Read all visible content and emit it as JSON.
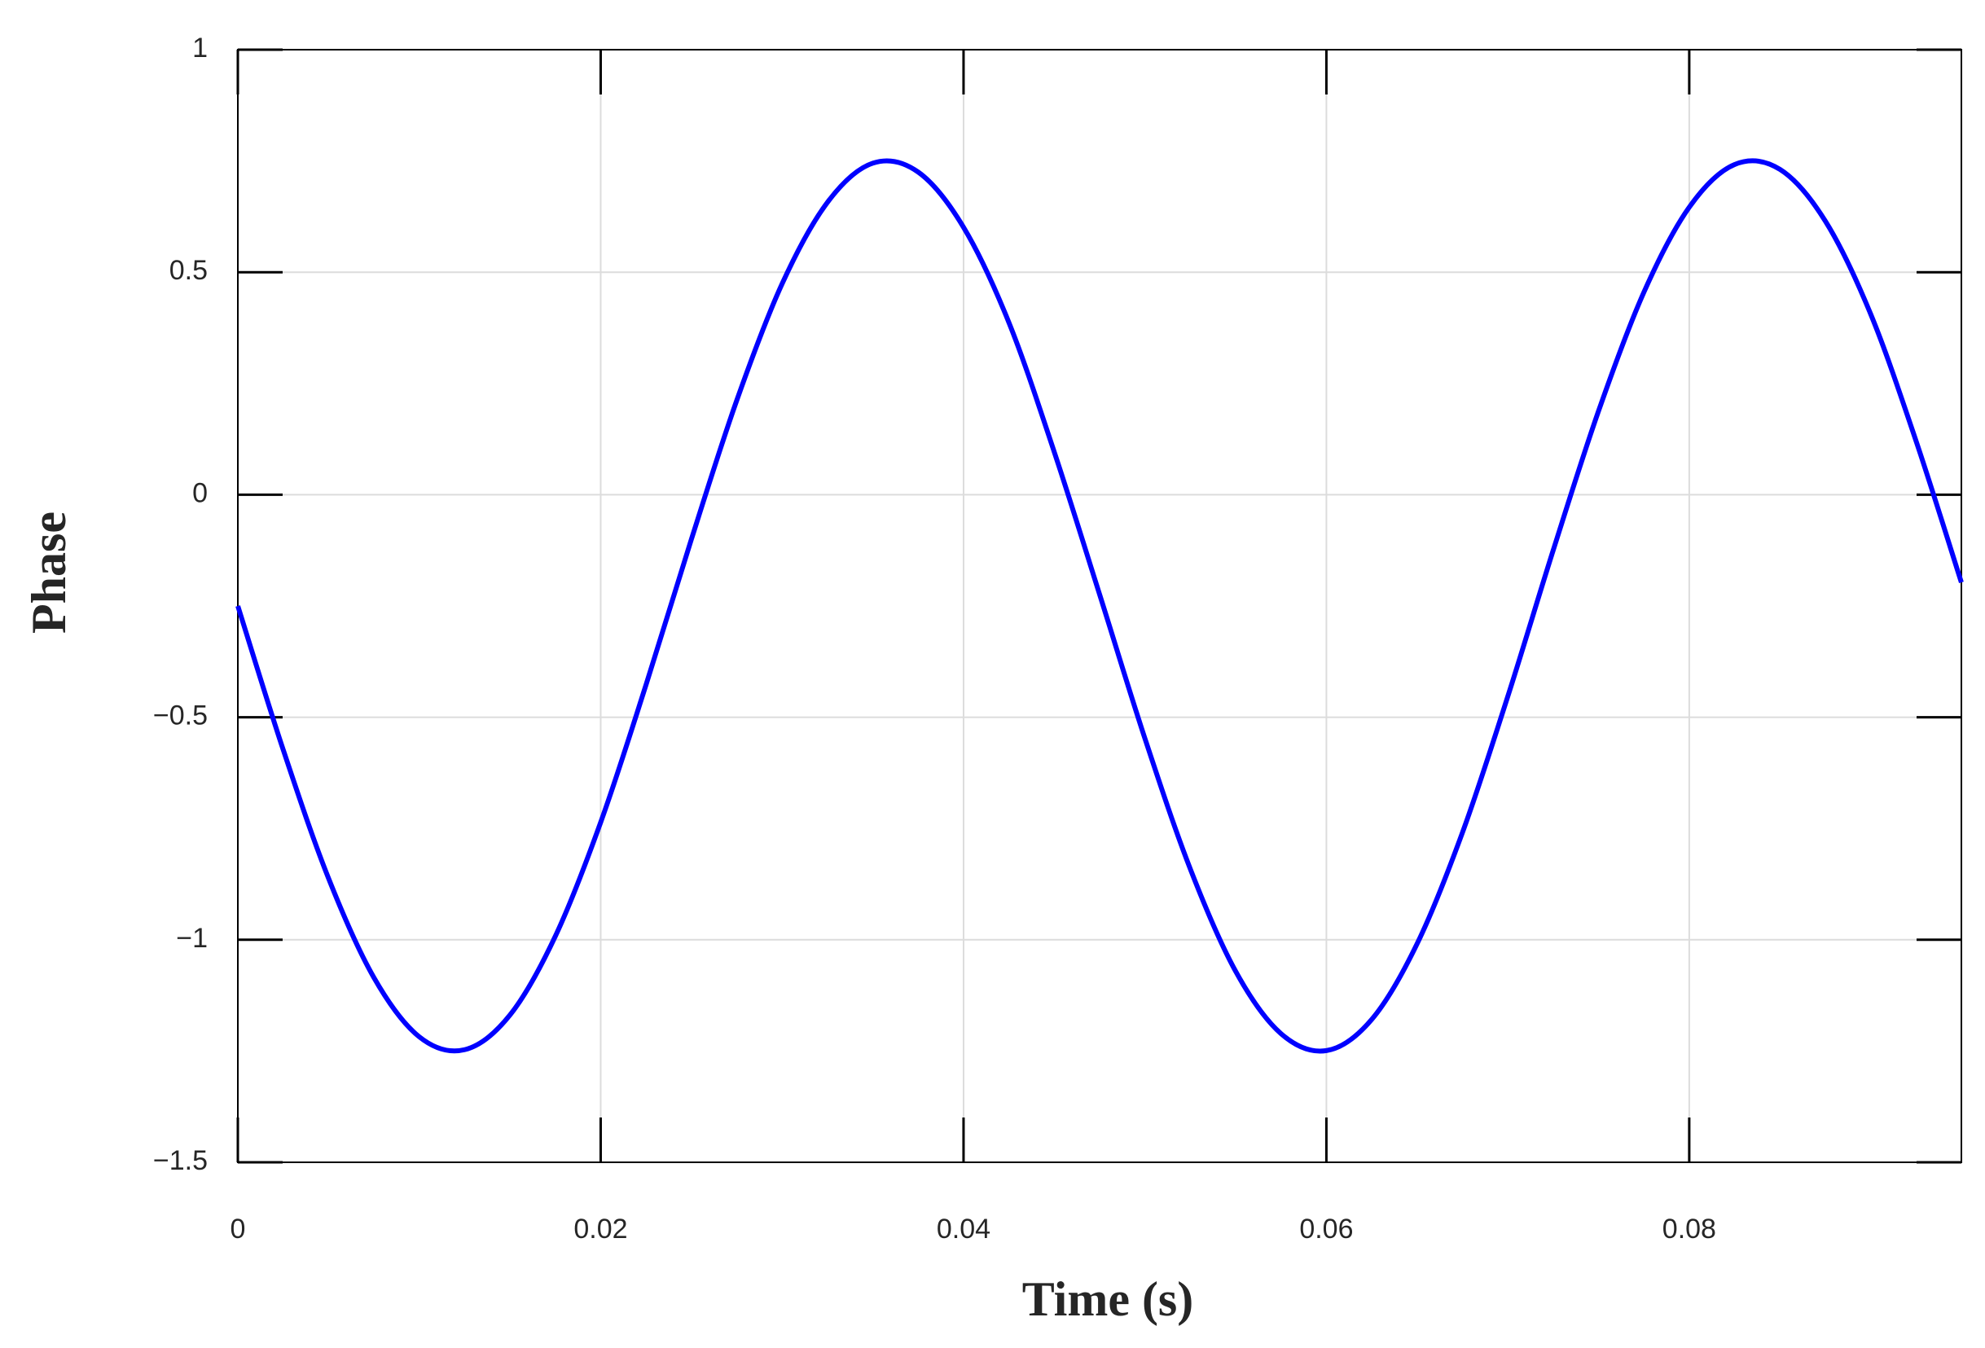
{
  "chart_data": {
    "type": "line",
    "x_label": "Time (s)",
    "y_label": "Phase",
    "x": [
      0,
      0.0025,
      0.005,
      0.0075,
      0.01,
      0.0125,
      0.015,
      0.0175,
      0.02,
      0.0225,
      0.025,
      0.0275,
      0.03,
      0.0325,
      0.035,
      0.0375,
      0.04,
      0.0425,
      0.045,
      0.0475,
      0.05,
      0.0525,
      0.055,
      0.0575,
      0.06,
      0.0625,
      0.065,
      0.0675,
      0.07,
      0.0725,
      0.075,
      0.0775,
      0.08,
      0.0825,
      0.085,
      0.0875,
      0.09,
      0.0925,
      0.095
    ],
    "series": [
      {
        "color": "#0000ff",
        "values": [
          -0.25,
          -0.573,
          -0.862,
          -1.085,
          -1.218,
          -1.247,
          -1.169,
          -0.992,
          -0.736,
          -0.427,
          -0.1,
          0.212,
          0.474,
          0.657,
          0.745,
          0.725,
          0.601,
          0.387,
          0.096,
          -0.224,
          -0.548,
          -0.841,
          -1.071,
          -1.211,
          -1.249,
          -1.179,
          -1.009,
          -0.759,
          -0.453,
          -0.125,
          0.188,
          0.455,
          0.646,
          0.742,
          0.731,
          0.615,
          0.406,
          0.121,
          -0.197
        ]
      }
    ],
    "xlim": [
      0,
      0.095
    ],
    "ylim": [
      -1.5,
      1
    ],
    "xticks": [
      0,
      0.02,
      0.04,
      0.06,
      0.08
    ],
    "yticks": [
      {
        "value": -1.5,
        "label": "−1.5"
      },
      {
        "value": -1,
        "label": "−1"
      },
      {
        "value": -0.5,
        "label": "−0.5"
      },
      0,
      0.5,
      1
    ],
    "grid": true
  }
}
